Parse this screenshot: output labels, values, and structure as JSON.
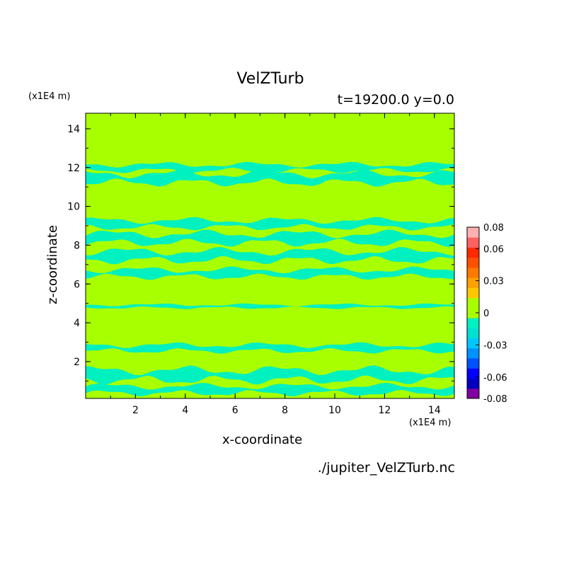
{
  "chart_data": {
    "type": "heatmap",
    "title": "VelZTurb",
    "subtitle": "t=19200.0 y=0.0",
    "xlabel": "x-coordinate",
    "ylabel": "z-coordinate",
    "x_unit": "(x1E4 m)",
    "y_unit": "(x1E4 m)",
    "xlim": [
      0,
      14.8
    ],
    "ylim": [
      0.1,
      14.8
    ],
    "x_ticks": [
      "2",
      "4",
      "6",
      "8",
      "10",
      "12",
      "14"
    ],
    "y_ticks": [
      "2",
      "4",
      "6",
      "8",
      "10",
      "12",
      "14"
    ],
    "colorbar": {
      "labels": [
        "0.08",
        "0.06",
        "0.03",
        "0",
        "-0.03",
        "-0.06",
        "-0.08"
      ],
      "label_values": [
        0.08,
        0.06,
        0.03,
        0,
        -0.03,
        -0.06,
        -0.08
      ],
      "levels": [
        -0.08,
        -0.07,
        -0.06,
        -0.05,
        -0.04,
        -0.03,
        -0.02,
        -0.01,
        0.0,
        0.01,
        0.02,
        0.03,
        0.04,
        0.05,
        0.06,
        0.07,
        0.08
      ],
      "colors": [
        "#8000a0",
        "#0000c0",
        "#0000ff",
        "#0050ff",
        "#0090ff",
        "#00c8ff",
        "#00e0d0",
        "#00f0c0",
        "#a8ff00",
        "#a8ff00",
        "#ffc800",
        "#ffa000",
        "#ff7800",
        "#ff5000",
        "#ff2800",
        "#ff6060",
        "#ffb0b0"
      ]
    },
    "field": {
      "background_value": 0.005,
      "background_color": "#a8ff00",
      "negative_band_color": "#00f0c0",
      "negative_bands_z": [
        {
          "z_center": 0.55,
          "thickness": 0.35,
          "value": -0.015
        },
        {
          "z_center": 1.3,
          "thickness": 0.5,
          "value": -0.015
        },
        {
          "z_center": 2.7,
          "thickness": 0.3,
          "value": -0.012
        },
        {
          "z_center": 4.85,
          "thickness": 0.15,
          "value": -0.012
        },
        {
          "z_center": 6.55,
          "thickness": 0.35,
          "value": -0.015
        },
        {
          "z_center": 7.45,
          "thickness": 0.45,
          "value": -0.015
        },
        {
          "z_center": 8.35,
          "thickness": 0.45,
          "value": -0.015
        },
        {
          "z_center": 9.1,
          "thickness": 0.35,
          "value": -0.012
        },
        {
          "z_center": 11.45,
          "thickness": 0.45,
          "value": -0.015
        },
        {
          "z_center": 12.0,
          "thickness": 0.3,
          "value": -0.012
        }
      ]
    },
    "grid": false
  },
  "footer": {
    "filename": "./jupiter_VelZTurb.nc"
  }
}
